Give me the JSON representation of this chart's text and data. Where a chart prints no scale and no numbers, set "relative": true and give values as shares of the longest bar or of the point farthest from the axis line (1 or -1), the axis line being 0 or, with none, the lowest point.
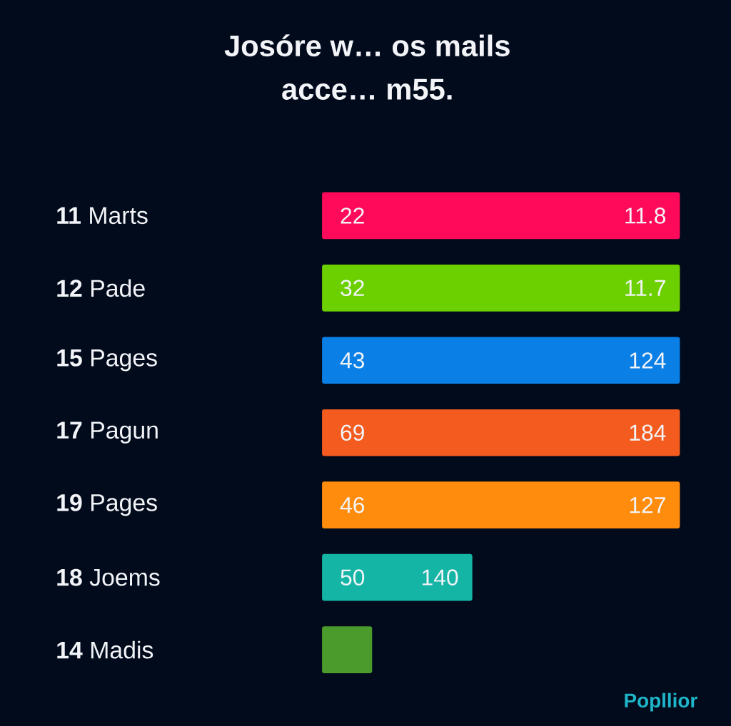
{
  "chart_data": {
    "type": "bar",
    "orientation": "horizontal",
    "relative": true,
    "title": "Josóre w… os mails",
    "subtitle": "acce… m55.",
    "categories": [
      "**11** Marts",
      "**12** Pade",
      "**15** Pages",
      "**17** Pagun",
      "**19** Pages",
      "**18** Joems",
      "**14** Madis"
    ],
    "values": [
      1,
      1,
      1,
      1,
      1,
      0.42,
      0.14
    ],
    "colors": [
      "#ff0a5a",
      "#6cd000",
      "#0a7fe6",
      "#f45b1f",
      "#ff8c0c",
      "#14b5a5",
      "#4a9a2c"
    ],
    "annotations": [
      {
        "text": "22",
        "x": 0,
        "y": "**11** Marts"
      },
      {
        "text": "11.8",
        "x": 1,
        "y": "**11** Marts"
      },
      {
        "text": "32",
        "x": 0,
        "y": "**12** Pade"
      },
      {
        "text": "11.7",
        "x": 1,
        "y": "**12** Pade"
      },
      {
        "text": "43",
        "x": 0,
        "y": "**15** Pages"
      },
      {
        "text": "124",
        "x": 1,
        "y": "**15** Pages"
      },
      {
        "text": "69",
        "x": 0,
        "y": "**17** Pagun"
      },
      {
        "text": "184",
        "x": 1,
        "y": "**17** Pagun"
      },
      {
        "text": "46",
        "x": 0,
        "y": "**19** Pages"
      },
      {
        "text": "127",
        "x": 1,
        "y": "**19** Pages"
      },
      {
        "text": "50",
        "x": 0,
        "y": "**18** Joems"
      },
      {
        "text": "140",
        "x": 0.42,
        "y": "**18** Joems"
      },
      "Popllior"
    ]
  }
}
